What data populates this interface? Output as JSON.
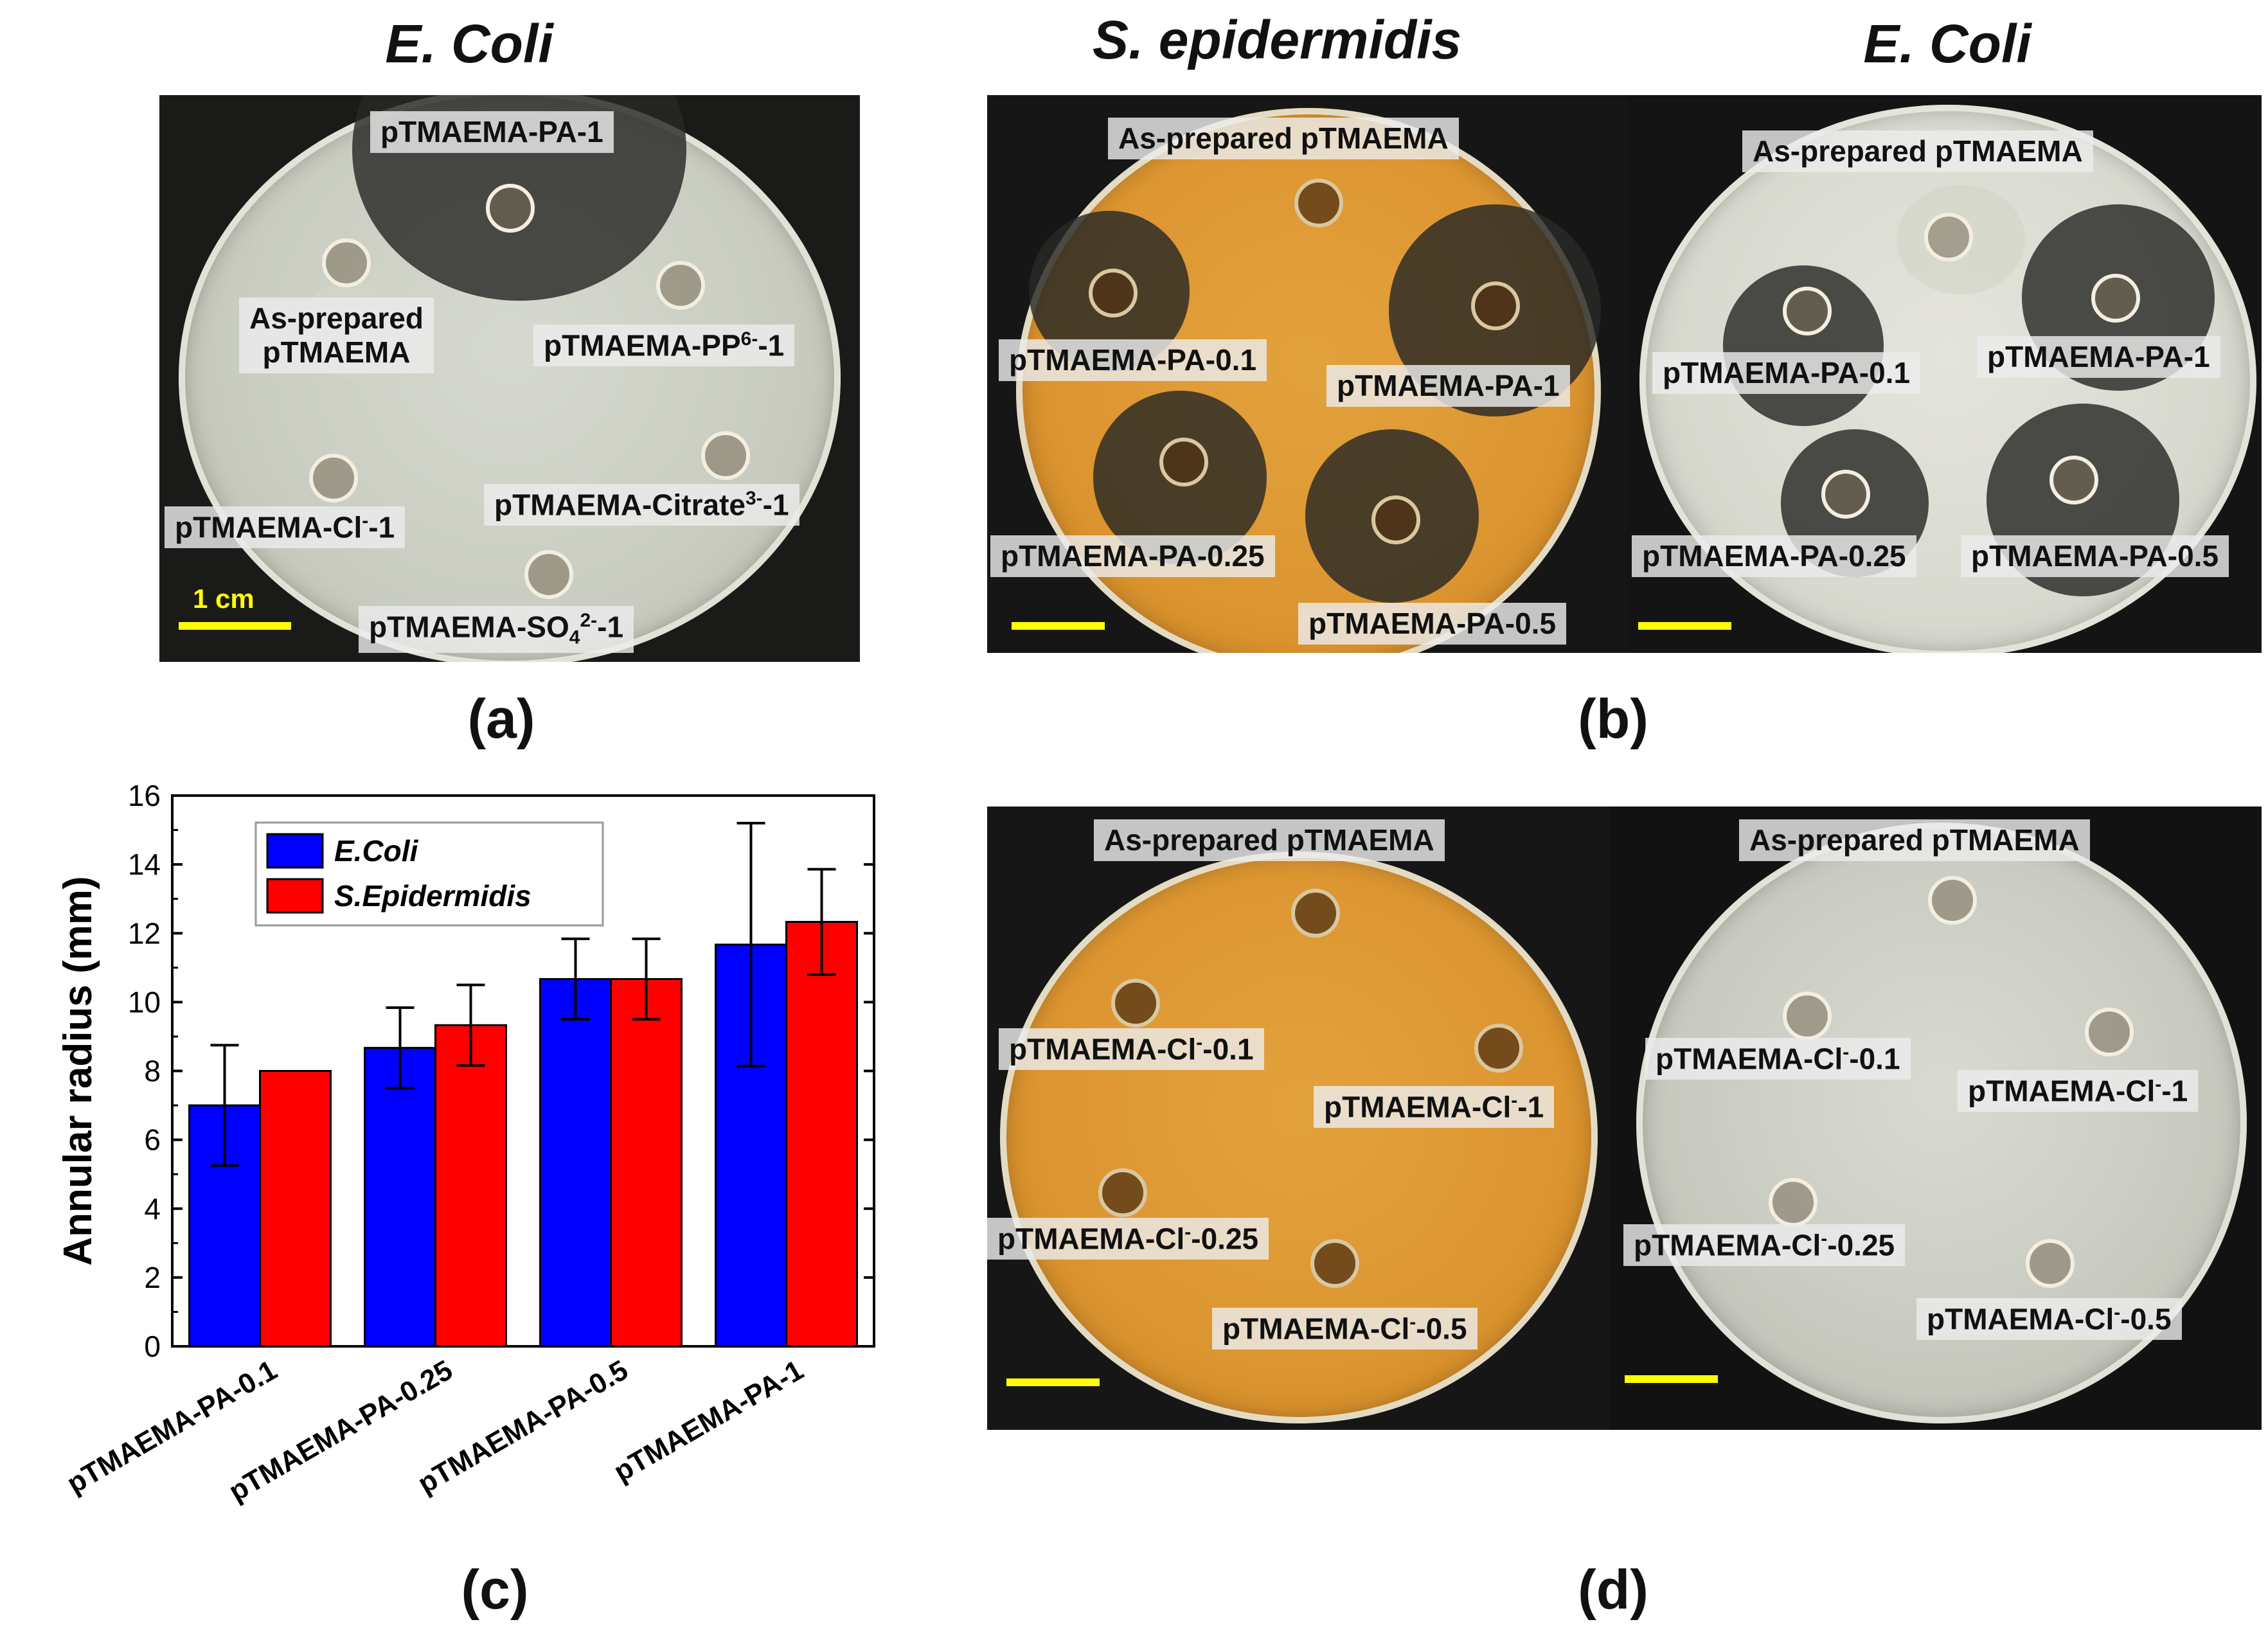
{
  "headings": {
    "a": "E. Coli",
    "b_left": "S. epidermidis",
    "b_right": "E. Coli"
  },
  "captions": {
    "a": "(a)",
    "b": "(b)",
    "c": "(c)",
    "d": "(d)"
  },
  "panel_a": {
    "scale": "1 cm",
    "labels": {
      "pa1": "pTMAEMA-PA-1",
      "asprep_line1": "As-prepared",
      "asprep_line2": "pTMAEMA",
      "pp_base": "pTMAEMA-PP",
      "pp_sup": "6-",
      "pp_tail": "-1",
      "citrate_base": "pTMAEMA-Citrate",
      "citrate_sup": "3-",
      "citrate_tail": "-1",
      "cl_base": "pTMAEMA-Cl",
      "cl_sup": "-",
      "cl_tail": "-1",
      "so4_base": "pTMAEMA-SO",
      "so4_sub": "4",
      "so4_sup": "2-",
      "so4_tail": "-1"
    }
  },
  "panel_b": {
    "left": {
      "asprep": "As-prepared pTMAEMA",
      "pa01": "pTMAEMA-PA-0.1",
      "pa1": "pTMAEMA-PA-1",
      "pa025": "pTMAEMA-PA-0.25",
      "pa05": "pTMAEMA-PA-0.5"
    },
    "right": {
      "asprep": "As-prepared pTMAEMA",
      "pa01": "pTMAEMA-PA-0.1",
      "pa1": "pTMAEMA-PA-1",
      "pa025": "pTMAEMA-PA-0.25",
      "pa05": "pTMAEMA-PA-0.5"
    }
  },
  "panel_d": {
    "base": "pTMAEMA-Cl",
    "sup": "-",
    "left": {
      "asprep": "As-prepared pTMAEMA",
      "t01": "-0.1",
      "t1": "-1",
      "t025": "-0.25",
      "t05": "-0.5"
    },
    "right": {
      "asprep": "As-prepared pTMAEMA",
      "t01": "-0.1",
      "t1": "-1",
      "t025": "-0.25",
      "t05": "-0.5"
    }
  },
  "chart_data": {
    "type": "bar",
    "title": "",
    "xlabel": "",
    "ylabel": "Annular radius (mm)",
    "ylim": [
      0,
      16
    ],
    "yticks": [
      0,
      2,
      4,
      6,
      8,
      10,
      12,
      14,
      16
    ],
    "categories": [
      "pTMAEMA-PA-0.1",
      "pTMAEMA-PA-0.25",
      "pTMAEMA-PA-0.5",
      "pTMAEMA-PA-1"
    ],
    "series": [
      {
        "name": "E.Coli",
        "color": "#0000ff",
        "values": [
          7.0,
          8.67,
          10.67,
          11.67
        ],
        "errors": [
          1.75,
          1.17,
          1.17,
          3.53
        ]
      },
      {
        "name": "S.Epidermidis",
        "color": "#ff0000",
        "values": [
          8.0,
          9.33,
          10.67,
          12.33
        ],
        "errors": [
          0,
          1.17,
          1.17,
          1.53
        ]
      }
    ],
    "legend_position": "top-left",
    "grid": false
  }
}
